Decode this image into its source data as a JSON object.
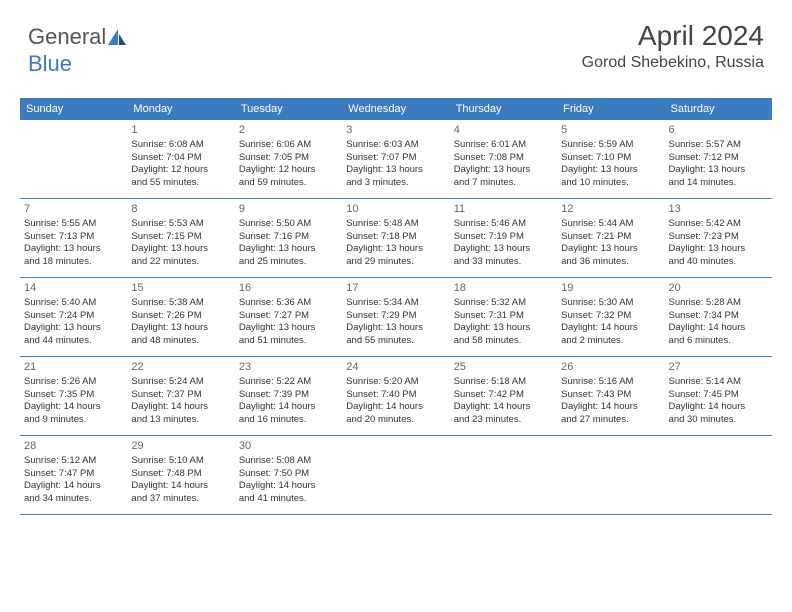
{
  "logo": {
    "text1": "General",
    "text2": "Blue"
  },
  "header": {
    "month": "April 2024",
    "location": "Gorod Shebekino, Russia"
  },
  "colors": {
    "header_bg": "#3b7bbf",
    "header_fg": "#ffffff",
    "rule": "#3b7bbf",
    "text": "#333333",
    "muted": "#666666"
  },
  "fonts": {
    "title_size": 28,
    "location_size": 16,
    "dayheader_size": 11,
    "cell_size": 9.5,
    "daynum_size": 11
  },
  "dayNames": [
    "Sunday",
    "Monday",
    "Tuesday",
    "Wednesday",
    "Thursday",
    "Friday",
    "Saturday"
  ],
  "weeks": [
    [
      null,
      {
        "n": "1",
        "sr": "Sunrise: 6:08 AM",
        "ss": "Sunset: 7:04 PM",
        "d1": "Daylight: 12 hours",
        "d2": "and 55 minutes."
      },
      {
        "n": "2",
        "sr": "Sunrise: 6:06 AM",
        "ss": "Sunset: 7:05 PM",
        "d1": "Daylight: 12 hours",
        "d2": "and 59 minutes."
      },
      {
        "n": "3",
        "sr": "Sunrise: 6:03 AM",
        "ss": "Sunset: 7:07 PM",
        "d1": "Daylight: 13 hours",
        "d2": "and 3 minutes."
      },
      {
        "n": "4",
        "sr": "Sunrise: 6:01 AM",
        "ss": "Sunset: 7:08 PM",
        "d1": "Daylight: 13 hours",
        "d2": "and 7 minutes."
      },
      {
        "n": "5",
        "sr": "Sunrise: 5:59 AM",
        "ss": "Sunset: 7:10 PM",
        "d1": "Daylight: 13 hours",
        "d2": "and 10 minutes."
      },
      {
        "n": "6",
        "sr": "Sunrise: 5:57 AM",
        "ss": "Sunset: 7:12 PM",
        "d1": "Daylight: 13 hours",
        "d2": "and 14 minutes."
      }
    ],
    [
      {
        "n": "7",
        "sr": "Sunrise: 5:55 AM",
        "ss": "Sunset: 7:13 PM",
        "d1": "Daylight: 13 hours",
        "d2": "and 18 minutes."
      },
      {
        "n": "8",
        "sr": "Sunrise: 5:53 AM",
        "ss": "Sunset: 7:15 PM",
        "d1": "Daylight: 13 hours",
        "d2": "and 22 minutes."
      },
      {
        "n": "9",
        "sr": "Sunrise: 5:50 AM",
        "ss": "Sunset: 7:16 PM",
        "d1": "Daylight: 13 hours",
        "d2": "and 25 minutes."
      },
      {
        "n": "10",
        "sr": "Sunrise: 5:48 AM",
        "ss": "Sunset: 7:18 PM",
        "d1": "Daylight: 13 hours",
        "d2": "and 29 minutes."
      },
      {
        "n": "11",
        "sr": "Sunrise: 5:46 AM",
        "ss": "Sunset: 7:19 PM",
        "d1": "Daylight: 13 hours",
        "d2": "and 33 minutes."
      },
      {
        "n": "12",
        "sr": "Sunrise: 5:44 AM",
        "ss": "Sunset: 7:21 PM",
        "d1": "Daylight: 13 hours",
        "d2": "and 36 minutes."
      },
      {
        "n": "13",
        "sr": "Sunrise: 5:42 AM",
        "ss": "Sunset: 7:23 PM",
        "d1": "Daylight: 13 hours",
        "d2": "and 40 minutes."
      }
    ],
    [
      {
        "n": "14",
        "sr": "Sunrise: 5:40 AM",
        "ss": "Sunset: 7:24 PM",
        "d1": "Daylight: 13 hours",
        "d2": "and 44 minutes."
      },
      {
        "n": "15",
        "sr": "Sunrise: 5:38 AM",
        "ss": "Sunset: 7:26 PM",
        "d1": "Daylight: 13 hours",
        "d2": "and 48 minutes."
      },
      {
        "n": "16",
        "sr": "Sunrise: 5:36 AM",
        "ss": "Sunset: 7:27 PM",
        "d1": "Daylight: 13 hours",
        "d2": "and 51 minutes."
      },
      {
        "n": "17",
        "sr": "Sunrise: 5:34 AM",
        "ss": "Sunset: 7:29 PM",
        "d1": "Daylight: 13 hours",
        "d2": "and 55 minutes."
      },
      {
        "n": "18",
        "sr": "Sunrise: 5:32 AM",
        "ss": "Sunset: 7:31 PM",
        "d1": "Daylight: 13 hours",
        "d2": "and 58 minutes."
      },
      {
        "n": "19",
        "sr": "Sunrise: 5:30 AM",
        "ss": "Sunset: 7:32 PM",
        "d1": "Daylight: 14 hours",
        "d2": "and 2 minutes."
      },
      {
        "n": "20",
        "sr": "Sunrise: 5:28 AM",
        "ss": "Sunset: 7:34 PM",
        "d1": "Daylight: 14 hours",
        "d2": "and 6 minutes."
      }
    ],
    [
      {
        "n": "21",
        "sr": "Sunrise: 5:26 AM",
        "ss": "Sunset: 7:35 PM",
        "d1": "Daylight: 14 hours",
        "d2": "and 9 minutes."
      },
      {
        "n": "22",
        "sr": "Sunrise: 5:24 AM",
        "ss": "Sunset: 7:37 PM",
        "d1": "Daylight: 14 hours",
        "d2": "and 13 minutes."
      },
      {
        "n": "23",
        "sr": "Sunrise: 5:22 AM",
        "ss": "Sunset: 7:39 PM",
        "d1": "Daylight: 14 hours",
        "d2": "and 16 minutes."
      },
      {
        "n": "24",
        "sr": "Sunrise: 5:20 AM",
        "ss": "Sunset: 7:40 PM",
        "d1": "Daylight: 14 hours",
        "d2": "and 20 minutes."
      },
      {
        "n": "25",
        "sr": "Sunrise: 5:18 AM",
        "ss": "Sunset: 7:42 PM",
        "d1": "Daylight: 14 hours",
        "d2": "and 23 minutes."
      },
      {
        "n": "26",
        "sr": "Sunrise: 5:16 AM",
        "ss": "Sunset: 7:43 PM",
        "d1": "Daylight: 14 hours",
        "d2": "and 27 minutes."
      },
      {
        "n": "27",
        "sr": "Sunrise: 5:14 AM",
        "ss": "Sunset: 7:45 PM",
        "d1": "Daylight: 14 hours",
        "d2": "and 30 minutes."
      }
    ],
    [
      {
        "n": "28",
        "sr": "Sunrise: 5:12 AM",
        "ss": "Sunset: 7:47 PM",
        "d1": "Daylight: 14 hours",
        "d2": "and 34 minutes."
      },
      {
        "n": "29",
        "sr": "Sunrise: 5:10 AM",
        "ss": "Sunset: 7:48 PM",
        "d1": "Daylight: 14 hours",
        "d2": "and 37 minutes."
      },
      {
        "n": "30",
        "sr": "Sunrise: 5:08 AM",
        "ss": "Sunset: 7:50 PM",
        "d1": "Daylight: 14 hours",
        "d2": "and 41 minutes."
      },
      null,
      null,
      null,
      null
    ]
  ]
}
